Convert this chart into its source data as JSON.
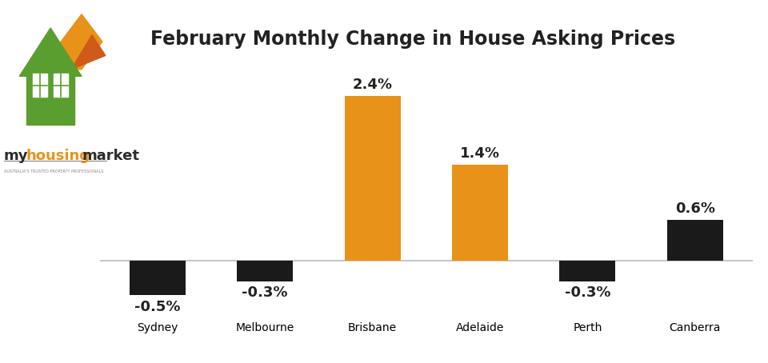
{
  "title": "February Monthly Change in House Asking Prices",
  "categories": [
    "Sydney",
    "Melbourne",
    "Brisbane",
    "Adelaide",
    "Perth",
    "Canberra"
  ],
  "values": [
    -0.5,
    -0.3,
    2.4,
    1.4,
    -0.3,
    0.6
  ],
  "labels": [
    "-0.5%",
    "-0.3%",
    "2.4%",
    "1.4%",
    "-0.3%",
    "0.6%"
  ],
  "bar_colors": [
    "#1a1a1a",
    "#1a1a1a",
    "#E8921A",
    "#E8921A",
    "#1a1a1a",
    "#1a1a1a"
  ],
  "ylim": [
    -0.85,
    2.95
  ],
  "background_color": "#ffffff",
  "title_fontsize": 17,
  "label_fontsize": 13,
  "tick_fontsize": 13,
  "logo_my_color": "#2b2b2b",
  "logo_housing_color": "#E8921A",
  "logo_market_color": "#2b2b2b",
  "logo_green": "#5A9E2F",
  "logo_orange": "#E8921A",
  "logo_dark_orange": "#D05A1A",
  "tagline": "AUSTRALIA'S TRUSTED PROPERTY PROFESSIONALS"
}
